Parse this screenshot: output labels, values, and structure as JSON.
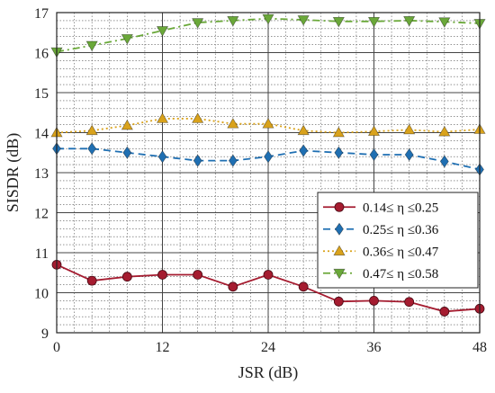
{
  "chart_data": {
    "type": "line",
    "title": "",
    "xlabel": "JSR (dB)",
    "ylabel": "SISDR (dB)",
    "xlim": [
      0,
      48
    ],
    "ylim": [
      9,
      17
    ],
    "xticks": [
      0,
      12,
      24,
      36,
      48
    ],
    "yticks": [
      9,
      10,
      11,
      12,
      13,
      14,
      15,
      16,
      17
    ],
    "x": [
      0,
      4,
      8,
      12,
      16,
      20,
      24,
      28,
      32,
      36,
      40,
      44,
      48
    ],
    "grid": true,
    "minor_grid": true,
    "legend_position": "right",
    "series": [
      {
        "name": "0.14≤ η ≤0.25",
        "color": "#a51c30",
        "line": "solid",
        "marker": "circle",
        "values": [
          10.7,
          10.3,
          10.4,
          10.45,
          10.45,
          10.15,
          10.45,
          10.15,
          9.78,
          9.8,
          9.77,
          9.53,
          9.6
        ]
      },
      {
        "name": "0.25≤ η ≤0.36",
        "color": "#1f6fb2",
        "line": "dashed",
        "marker": "diamond",
        "values": [
          13.6,
          13.6,
          13.5,
          13.4,
          13.3,
          13.3,
          13.4,
          13.55,
          13.5,
          13.45,
          13.45,
          13.28,
          13.08
        ]
      },
      {
        "name": "0.36≤ η ≤0.47",
        "color": "#d9a21b",
        "line": "dotted",
        "marker": "triangle-up",
        "values": [
          14.0,
          14.05,
          14.18,
          14.35,
          14.35,
          14.22,
          14.22,
          14.05,
          14.0,
          14.03,
          14.07,
          14.02,
          14.08
        ]
      },
      {
        "name": "0.47≤ η ≤0.58",
        "color": "#6aa839",
        "line": "dashdot",
        "marker": "triangle-down",
        "values": [
          16.02,
          16.18,
          16.35,
          16.55,
          16.75,
          16.8,
          16.85,
          16.82,
          16.78,
          16.78,
          16.8,
          16.77,
          16.73
        ]
      }
    ]
  }
}
